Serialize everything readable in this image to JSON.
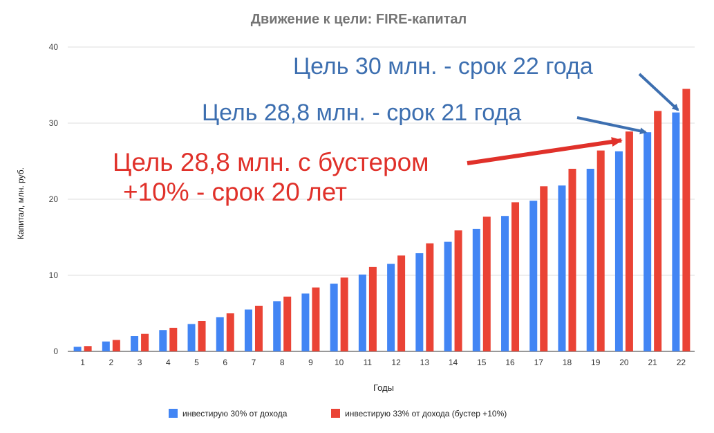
{
  "chart_data": {
    "type": "bar",
    "title": "Движение к цели: FIRE-капитал",
    "xlabel": "Годы",
    "ylabel": "Капитал, млн. руб.",
    "ylim": [
      0,
      40
    ],
    "yticks": [
      0,
      10,
      20,
      30,
      40
    ],
    "grid": true,
    "legend_position": "bottom",
    "categories": [
      "1",
      "2",
      "3",
      "4",
      "5",
      "6",
      "7",
      "8",
      "9",
      "10",
      "11",
      "12",
      "13",
      "14",
      "15",
      "16",
      "17",
      "18",
      "19",
      "20",
      "21",
      "22"
    ],
    "series": [
      {
        "name": "инвестирую 30% от дохода",
        "color": "#4285f4",
        "values": [
          0.6,
          1.3,
          2.0,
          2.8,
          3.6,
          4.5,
          5.5,
          6.6,
          7.6,
          8.9,
          10.1,
          11.5,
          12.9,
          14.4,
          16.1,
          17.8,
          19.8,
          21.8,
          24.0,
          26.3,
          28.8,
          31.4
        ]
      },
      {
        "name": "инвестирую 33% от дохода (бустер +10%)",
        "color": "#ea4335",
        "values": [
          0.7,
          1.5,
          2.3,
          3.1,
          4.0,
          5.0,
          6.0,
          7.2,
          8.4,
          9.7,
          11.1,
          12.6,
          14.2,
          15.9,
          17.7,
          19.6,
          21.7,
          24.0,
          26.4,
          28.9,
          31.6,
          34.5
        ]
      }
    ],
    "annotations": [
      {
        "text": "Цель 30 млн. - срок 22 года",
        "color": "#3d6fb0",
        "points_to": {
          "category": "22",
          "series": 0
        }
      },
      {
        "text": "Цель 28,8 млн. - срок 21 года",
        "color": "#3d6fb0",
        "points_to": {
          "category": "21",
          "series": 0
        }
      },
      {
        "text": "Цель 28,8 млн. с бустером",
        "text2": "+10% - срок 20 лет",
        "color": "#e0312a",
        "points_to": {
          "category": "20",
          "series": 1
        }
      }
    ]
  }
}
